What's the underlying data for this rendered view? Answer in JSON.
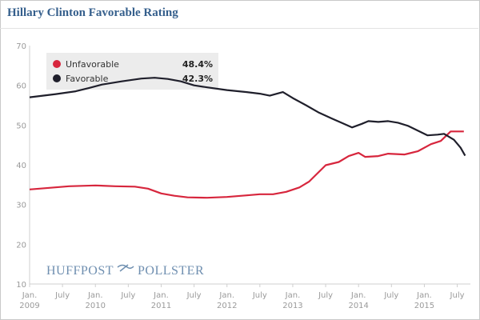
{
  "chart_data": {
    "type": "line",
    "title": "Hillary Clinton Favorable Rating",
    "ylim": [
      10,
      70
    ],
    "yticks": [
      10,
      20,
      30,
      40,
      50,
      60,
      70
    ],
    "xlim": [
      2009.0,
      2015.7
    ],
    "xticks": [
      {
        "x": 2009.0,
        "line1": "Jan.",
        "line2": "2009"
      },
      {
        "x": 2009.5,
        "line1": "July",
        "line2": ""
      },
      {
        "x": 2010.0,
        "line1": "Jan.",
        "line2": "2010"
      },
      {
        "x": 2010.5,
        "line1": "July",
        "line2": ""
      },
      {
        "x": 2011.0,
        "line1": "Jan.",
        "line2": "2011"
      },
      {
        "x": 2011.5,
        "line1": "July",
        "line2": ""
      },
      {
        "x": 2012.0,
        "line1": "Jan.",
        "line2": "2012"
      },
      {
        "x": 2012.5,
        "line1": "July",
        "line2": ""
      },
      {
        "x": 2013.0,
        "line1": "Jan.",
        "line2": "2013"
      },
      {
        "x": 2013.5,
        "line1": "July",
        "line2": ""
      },
      {
        "x": 2014.0,
        "line1": "Jan.",
        "line2": "2014"
      },
      {
        "x": 2014.5,
        "line1": "July",
        "line2": ""
      },
      {
        "x": 2015.0,
        "line1": "Jan.",
        "line2": "2015"
      },
      {
        "x": 2015.5,
        "line1": "July",
        "line2": ""
      }
    ],
    "series": [
      {
        "name": "Unfavorable",
        "color": "#d7263d",
        "current": "48.4%",
        "points": [
          [
            2009.0,
            33.8
          ],
          [
            2009.3,
            34.2
          ],
          [
            2009.6,
            34.6
          ],
          [
            2010.0,
            34.8
          ],
          [
            2010.3,
            34.6
          ],
          [
            2010.6,
            34.5
          ],
          [
            2010.8,
            34.0
          ],
          [
            2011.0,
            32.8
          ],
          [
            2011.2,
            32.2
          ],
          [
            2011.4,
            31.8
          ],
          [
            2011.7,
            31.7
          ],
          [
            2012.0,
            31.9
          ],
          [
            2012.3,
            32.3
          ],
          [
            2012.5,
            32.6
          ],
          [
            2012.7,
            32.6
          ],
          [
            2012.9,
            33.2
          ],
          [
            2013.1,
            34.3
          ],
          [
            2013.25,
            35.8
          ],
          [
            2013.5,
            39.9
          ],
          [
            2013.7,
            40.7
          ],
          [
            2013.85,
            42.2
          ],
          [
            2014.0,
            43.0
          ],
          [
            2014.1,
            42.0
          ],
          [
            2014.3,
            42.2
          ],
          [
            2014.45,
            42.8
          ],
          [
            2014.7,
            42.6
          ],
          [
            2014.9,
            43.4
          ],
          [
            2015.1,
            45.2
          ],
          [
            2015.25,
            46.0
          ],
          [
            2015.4,
            48.4
          ],
          [
            2015.6,
            48.4
          ]
        ]
      },
      {
        "name": "Favorable",
        "color": "#1f1f2b",
        "current": "42.3%",
        "points": [
          [
            2009.0,
            57.0
          ],
          [
            2009.2,
            57.4
          ],
          [
            2009.4,
            57.8
          ],
          [
            2009.7,
            58.5
          ],
          [
            2009.9,
            59.3
          ],
          [
            2010.1,
            60.2
          ],
          [
            2010.4,
            61.0
          ],
          [
            2010.7,
            61.7
          ],
          [
            2010.9,
            61.9
          ],
          [
            2011.1,
            61.6
          ],
          [
            2011.3,
            61.0
          ],
          [
            2011.5,
            60.0
          ],
          [
            2011.7,
            59.5
          ],
          [
            2012.0,
            58.8
          ],
          [
            2012.3,
            58.3
          ],
          [
            2012.5,
            57.9
          ],
          [
            2012.65,
            57.4
          ],
          [
            2012.85,
            58.3
          ],
          [
            2013.0,
            56.8
          ],
          [
            2013.2,
            55.0
          ],
          [
            2013.4,
            53.1
          ],
          [
            2013.6,
            51.6
          ],
          [
            2013.75,
            50.5
          ],
          [
            2013.9,
            49.4
          ],
          [
            2014.05,
            50.3
          ],
          [
            2014.15,
            51.0
          ],
          [
            2014.3,
            50.8
          ],
          [
            2014.45,
            51.0
          ],
          [
            2014.6,
            50.6
          ],
          [
            2014.75,
            49.8
          ],
          [
            2014.9,
            48.6
          ],
          [
            2015.05,
            47.4
          ],
          [
            2015.2,
            47.6
          ],
          [
            2015.3,
            47.8
          ],
          [
            2015.45,
            46.3
          ],
          [
            2015.55,
            44.3
          ],
          [
            2015.62,
            42.3
          ]
        ]
      }
    ],
    "legend_position": "top-left",
    "grid": false
  },
  "brand": {
    "left": "HUFFPOST",
    "right": "POLLSTER"
  }
}
